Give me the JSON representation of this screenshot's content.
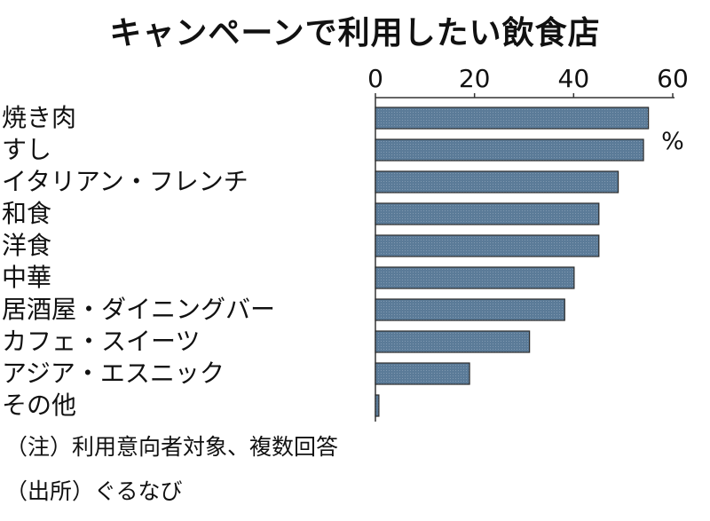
{
  "chart_data": {
    "type": "bar",
    "orientation": "horizontal",
    "title": "キャンペーンで利用したい飲食店",
    "unit": "%",
    "categories": [
      "焼き肉",
      "すし",
      "イタリアン・フレンチ",
      "和食",
      "洋食",
      "中華",
      "居酒屋・ダイニングバー",
      "カフェ・スイーツ",
      "アジア・エスニック",
      "その他"
    ],
    "values": [
      55.1,
      54.1,
      49.0,
      45.1,
      45.1,
      40.1,
      38.2,
      31.1,
      19.0,
      0.7
    ],
    "xlim": [
      0,
      60
    ],
    "ticks": [
      "0",
      "20",
      "40",
      "60"
    ],
    "tick_values": [
      0,
      20,
      40,
      60
    ],
    "axis_position": "top",
    "grid": false,
    "bar_color": "#5b7b98",
    "notes": [
      "（注）利用意向者対象、複数回答",
      "（出所）ぐるなび"
    ]
  }
}
